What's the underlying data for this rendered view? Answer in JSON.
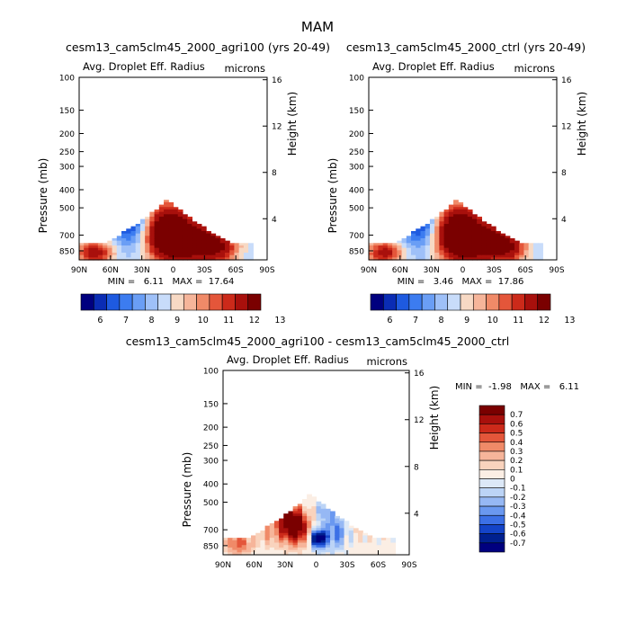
{
  "figure": {
    "title": "MAM"
  },
  "chart_data": [
    {
      "type": "heatmap",
      "title": "cesm13_cam5clm45_2000_agri100 (yrs 20-49)",
      "subtitle_left": "Avg. Droplet Eff. Radius",
      "subtitle_right": "microns",
      "xlabel": "",
      "ylabel": "Pressure (mb)",
      "ylabel_right": "Height (km)",
      "x_ticks": [
        "90N",
        "60N",
        "30N",
        "0",
        "30S",
        "60S",
        "90S"
      ],
      "y_ticks": [
        "100",
        "150",
        "200",
        "250",
        "300",
        "400",
        "500",
        "700",
        "850"
      ],
      "y_ticks_right": [
        "16",
        "12",
        "8",
        "4"
      ],
      "xlim": [
        90,
        -90
      ],
      "ylim_pressure": [
        100,
        950
      ],
      "scale": "log-pressure",
      "stats": "MIN =   6.11   MAX =  17.64",
      "colorbar": {
        "orientation": "horizontal",
        "labels": [
          "6",
          "7",
          "8",
          "9",
          "10",
          "11",
          "12",
          "13"
        ],
        "colors": [
          "#00007f",
          "#0a2cb4",
          "#1e5ae0",
          "#3c7cf0",
          "#6a9ef5",
          "#9ec0f8",
          "#c8dcfa",
          "#f7d9c4",
          "#f6b59a",
          "#f08a68",
          "#e4563a",
          "#cc2a1a",
          "#a8100c",
          "#7a0000"
        ]
      }
    },
    {
      "type": "heatmap",
      "title": "cesm13_cam5clm45_2000_ctrl (yrs 20-49)",
      "subtitle_left": "Avg. Droplet Eff. Radius",
      "subtitle_right": "microns",
      "xlabel": "",
      "ylabel": "Pressure (mb)",
      "ylabel_right": "Height (km)",
      "x_ticks": [
        "90N",
        "60N",
        "30N",
        "0",
        "30S",
        "60S",
        "90S"
      ],
      "y_ticks": [
        "100",
        "150",
        "200",
        "250",
        "300",
        "400",
        "500",
        "700",
        "850"
      ],
      "y_ticks_right": [
        "16",
        "12",
        "8",
        "4"
      ],
      "xlim": [
        90,
        -90
      ],
      "ylim_pressure": [
        100,
        950
      ],
      "scale": "log-pressure",
      "stats": "MIN =   3.46   MAX =  17.86",
      "colorbar": {
        "orientation": "horizontal",
        "labels": [
          "6",
          "7",
          "8",
          "9",
          "10",
          "11",
          "12",
          "13"
        ],
        "colors": [
          "#00007f",
          "#0a2cb4",
          "#1e5ae0",
          "#3c7cf0",
          "#6a9ef5",
          "#9ec0f8",
          "#c8dcfa",
          "#f7d9c4",
          "#f6b59a",
          "#f08a68",
          "#e4563a",
          "#cc2a1a",
          "#a8100c",
          "#7a0000"
        ]
      }
    },
    {
      "type": "heatmap",
      "title": "cesm13_cam5clm45_2000_agri100 - cesm13_cam5clm45_2000_ctrl",
      "subtitle_left": "Avg. Droplet Eff. Radius",
      "subtitle_right": "microns",
      "xlabel": "",
      "ylabel": "Pressure (mb)",
      "ylabel_right": "Height (km)",
      "x_ticks": [
        "90N",
        "60N",
        "30N",
        "0",
        "30S",
        "60S",
        "90S"
      ],
      "y_ticks": [
        "100",
        "150",
        "200",
        "250",
        "300",
        "400",
        "500",
        "700",
        "850"
      ],
      "y_ticks_right": [
        "16",
        "12",
        "8",
        "4"
      ],
      "xlim": [
        90,
        -90
      ],
      "ylim_pressure": [
        100,
        950
      ],
      "scale": "log-pressure",
      "stats": "MIN =  -1.98   MAX =   6.11",
      "colorbar": {
        "orientation": "vertical",
        "labels": [
          "0.7",
          "0.6",
          "0.5",
          "0.4",
          "0.3",
          "0.2",
          "0.1",
          "0",
          "-0.1",
          "-0.2",
          "-0.3",
          "-0.4",
          "-0.5",
          "-0.6",
          "-0.7"
        ],
        "colors": [
          "#7a0000",
          "#a8100c",
          "#cc2a1a",
          "#e4563a",
          "#f08a68",
          "#f6b59a",
          "#f9d3bd",
          "#fbeee4",
          "#dce8f7",
          "#bcd4f6",
          "#96b8f4",
          "#6a98f0",
          "#3c70e6",
          "#1444c8",
          "#00208f",
          "#00007f"
        ]
      }
    }
  ]
}
